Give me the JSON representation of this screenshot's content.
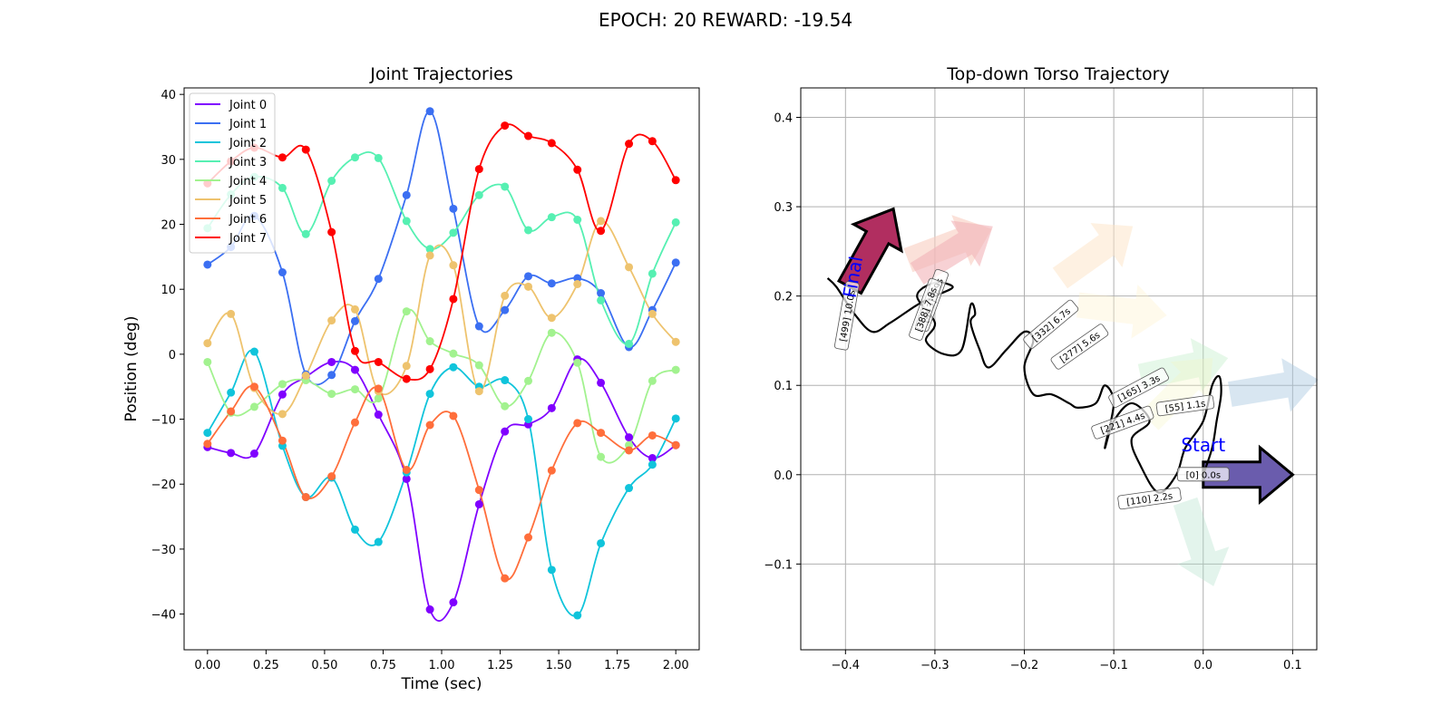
{
  "figure": {
    "suptitle": "EPOCH:  20 REWARD: -19.54"
  },
  "chart_data": [
    {
      "type": "line",
      "title": "Joint Trajectories",
      "xlabel": "Time (sec)",
      "ylabel": "Position (deg)",
      "xlim": [
        -0.1,
        2.1
      ],
      "ylim": [
        -45.5,
        41
      ],
      "xticks": [
        0.0,
        0.25,
        0.5,
        0.75,
        1.0,
        1.25,
        1.5,
        1.75,
        2.0
      ],
      "xtick_labels": [
        "0.00",
        "0.25",
        "0.50",
        "0.75",
        "1.00",
        "1.25",
        "1.50",
        "1.75",
        "2.00"
      ],
      "yticks": [
        -40,
        -30,
        -20,
        -10,
        0,
        10,
        20,
        30,
        40
      ],
      "ytick_labels": [
        "−40",
        "−30",
        "−20",
        "−10",
        "0",
        "10",
        "20",
        "30",
        "40"
      ],
      "grid": false,
      "legend": "upper-left",
      "x": [
        0.0,
        0.1,
        0.2,
        0.32,
        0.42,
        0.53,
        0.63,
        0.73,
        0.85,
        0.95,
        1.05,
        1.16,
        1.27,
        1.37,
        1.47,
        1.58,
        1.68,
        1.8,
        1.9,
        2.0
      ],
      "series": [
        {
          "name": "Joint 0",
          "color": "#8000ff",
          "values": [
            -14.3,
            -15.2,
            -15.3,
            -6.2,
            -3.5,
            -1.2,
            -2.4,
            -9.3,
            -19.2,
            -39.3,
            -38.2,
            -23.1,
            -11.9,
            -10.8,
            -8.3,
            -0.8,
            -4.4,
            -12.8,
            -16.0,
            -14.0
          ]
        },
        {
          "name": "Joint 1",
          "color": "#3b6ff2",
          "values": [
            13.8,
            16.5,
            21.3,
            12.6,
            -3.1,
            -3.2,
            5.1,
            11.6,
            24.5,
            37.4,
            22.4,
            4.3,
            6.8,
            12.0,
            10.9,
            11.7,
            9.4,
            1.1,
            6.8,
            14.1
          ]
        },
        {
          "name": "Joint 2",
          "color": "#10c4db",
          "values": [
            -12.1,
            -5.9,
            0.4,
            -14.1,
            -22.0,
            -19.0,
            -27.0,
            -28.9,
            -18.2,
            -6.1,
            -2.0,
            -5.0,
            -4.0,
            -10.0,
            -33.2,
            -40.2,
            -29.1,
            -20.6,
            -17.0,
            -9.9
          ]
        },
        {
          "name": "Joint 3",
          "color": "#56f0b2",
          "values": [
            19.4,
            24.6,
            27.3,
            25.6,
            18.5,
            26.7,
            30.3,
            30.2,
            20.5,
            16.2,
            18.7,
            24.5,
            25.8,
            19.1,
            21.1,
            20.7,
            8.3,
            1.6,
            12.4,
            20.3
          ]
        },
        {
          "name": "Joint 4",
          "color": "#a2f28f",
          "values": [
            -1.2,
            -9.0,
            -8.1,
            -4.6,
            -4.0,
            -6.1,
            -5.4,
            -6.8,
            6.6,
            2.0,
            0.1,
            -1.7,
            -8.0,
            -4.1,
            3.3,
            -1.3,
            -15.8,
            -14.0,
            -4.1,
            -2.4
          ]
        },
        {
          "name": "Joint 5",
          "color": "#eec36e",
          "values": [
            1.7,
            6.2,
            -5.2,
            -9.2,
            -3.3,
            5.2,
            6.9,
            -5.7,
            -1.8,
            15.2,
            13.7,
            -5.7,
            9.0,
            10.4,
            5.6,
            10.8,
            20.5,
            13.4,
            6.2,
            1.9
          ]
        },
        {
          "name": "Joint 6",
          "color": "#ff6e3b",
          "values": [
            -13.8,
            -8.8,
            -5.0,
            -13.3,
            -22.0,
            -18.8,
            -10.5,
            -5.3,
            -17.8,
            -10.9,
            -9.5,
            -20.9,
            -34.5,
            -28.2,
            -17.9,
            -10.6,
            -12.1,
            -14.8,
            -12.5,
            -14.0
          ]
        },
        {
          "name": "Joint 7",
          "color": "#ff0000",
          "values": [
            26.3,
            29.7,
            31.8,
            30.3,
            31.5,
            18.8,
            0.5,
            -1.2,
            -3.8,
            -2.3,
            8.5,
            28.5,
            35.2,
            33.6,
            32.5,
            28.4,
            19.0,
            32.4,
            32.8,
            26.8
          ]
        }
      ]
    },
    {
      "type": "scatter",
      "title": "Top-down Torso Trajectory",
      "xlim": [
        -0.45,
        0.127
      ],
      "ylim": [
        -0.196,
        0.433
      ],
      "xticks": [
        -0.4,
        -0.3,
        -0.2,
        -0.1,
        0.0,
        0.1
      ],
      "xtick_labels": [
        "−0.4",
        "−0.3",
        "−0.2",
        "−0.1",
        "0.0",
        "0.1"
      ],
      "yticks": [
        -0.1,
        0.0,
        0.1,
        0.2,
        0.3,
        0.4
      ],
      "ytick_labels": [
        "−0.1",
        "0.0",
        "0.1",
        "0.2",
        "0.3",
        "0.4"
      ],
      "grid": true,
      "start_label": "Start",
      "final_label": "Final",
      "path": [
        [
          0.0,
          0.0
        ],
        [
          0.01,
          0.03
        ],
        [
          0.015,
          0.06
        ],
        [
          0.02,
          0.09
        ],
        [
          0.018,
          0.11
        ],
        [
          0.01,
          0.1
        ],
        [
          0.0,
          0.06
        ],
        [
          -0.02,
          0.03
        ],
        [
          -0.03,
          0.0
        ],
        [
          -0.05,
          -0.02
        ],
        [
          -0.07,
          0.01
        ],
        [
          -0.08,
          0.04
        ],
        [
          -0.06,
          0.06
        ],
        [
          -0.08,
          0.08
        ],
        [
          -0.1,
          0.06
        ],
        [
          -0.11,
          0.03
        ],
        [
          -0.1,
          0.08
        ],
        [
          -0.11,
          0.1
        ],
        [
          -0.12,
          0.08
        ],
        [
          -0.14,
          0.075
        ],
        [
          -0.15,
          0.08
        ],
        [
          -0.17,
          0.09
        ],
        [
          -0.19,
          0.09
        ],
        [
          -0.2,
          0.12
        ],
        [
          -0.19,
          0.15
        ],
        [
          -0.2,
          0.16
        ],
        [
          -0.22,
          0.14
        ],
        [
          -0.24,
          0.12
        ],
        [
          -0.25,
          0.14
        ],
        [
          -0.26,
          0.17
        ],
        [
          -0.255,
          0.18
        ],
        [
          -0.26,
          0.19
        ],
        [
          -0.27,
          0.14
        ],
        [
          -0.29,
          0.135
        ],
        [
          -0.31,
          0.15
        ],
        [
          -0.3,
          0.17
        ],
        [
          -0.32,
          0.2
        ],
        [
          -0.3,
          0.215
        ],
        [
          -0.28,
          0.21
        ],
        [
          -0.3,
          0.2
        ],
        [
          -0.32,
          0.19
        ],
        [
          -0.35,
          0.17
        ],
        [
          -0.37,
          0.16
        ],
        [
          -0.39,
          0.18
        ],
        [
          -0.41,
          0.21
        ],
        [
          -0.42,
          0.22
        ]
      ],
      "headings": [
        {
          "x": 0.0,
          "y": 0.0,
          "dx": 1.0,
          "dy": 0.0,
          "color": "#6a5cad",
          "alpha": 1.0,
          "label": "[0] 0.0s",
          "lx": 0.0,
          "ly": 0.0,
          "rot": 0
        },
        {
          "x": 0.03,
          "y": 0.09,
          "dx": 0.9,
          "dy": 0.15,
          "color": "#a8c8df",
          "alpha": 0.45,
          "label": "[55] 1.1s",
          "lx": -0.02,
          "ly": 0.077,
          "rot": 8
        },
        {
          "x": -0.02,
          "y": -0.03,
          "dx": 0.3,
          "dy": -0.9,
          "color": "#b0e0c8",
          "alpha": 0.35,
          "label": "[110] 2.2s",
          "lx": -0.06,
          "ly": -0.027,
          "rot": 8
        },
        {
          "x": -0.07,
          "y": 0.11,
          "dx": 0.95,
          "dy": 0.2,
          "color": "#b8ecc0",
          "alpha": 0.35,
          "label": "[165] 3.3s",
          "lx": -0.072,
          "ly": 0.097,
          "rot": 28
        },
        {
          "x": -0.06,
          "y": 0.06,
          "dx": 0.7,
          "dy": 0.7,
          "color": "#f4f4c0",
          "alpha": 0.3,
          "label": "[221] 4.4s",
          "lx": -0.09,
          "ly": 0.058,
          "rot": 20
        },
        {
          "x": -0.14,
          "y": 0.19,
          "dx": 0.85,
          "dy": -0.1,
          "color": "#fff0c8",
          "alpha": 0.35,
          "label": "[277] 5.6s",
          "lx": -0.138,
          "ly": 0.143,
          "rot": 35
        },
        {
          "x": -0.16,
          "y": 0.22,
          "dx": 0.7,
          "dy": 0.5,
          "color": "#fde3c6",
          "alpha": 0.5,
          "label": "[332] 6.7s",
          "lx": -0.17,
          "ly": 0.168,
          "rot": 40
        },
        {
          "x": -0.33,
          "y": 0.24,
          "dx": 0.8,
          "dy": 0.3,
          "color": "#f8cdbf",
          "alpha": 0.6,
          "label": "[443] 8.9s",
          "lx": -0.303,
          "ly": 0.195,
          "rot": 70
        },
        {
          "x": -0.32,
          "y": 0.225,
          "dx": 0.8,
          "dy": 0.5,
          "color": "#f2b3b8",
          "alpha": 0.6,
          "label": "[388] 7.8s",
          "lx": -0.31,
          "ly": 0.185,
          "rot": 70
        },
        {
          "x": -0.395,
          "y": 0.21,
          "dx": 0.5,
          "dy": 0.9,
          "color": "#a8174f",
          "alpha": 0.9,
          "label": "[499] 10.0s",
          "lx": -0.398,
          "ly": 0.178,
          "rot": 80
        }
      ]
    }
  ]
}
